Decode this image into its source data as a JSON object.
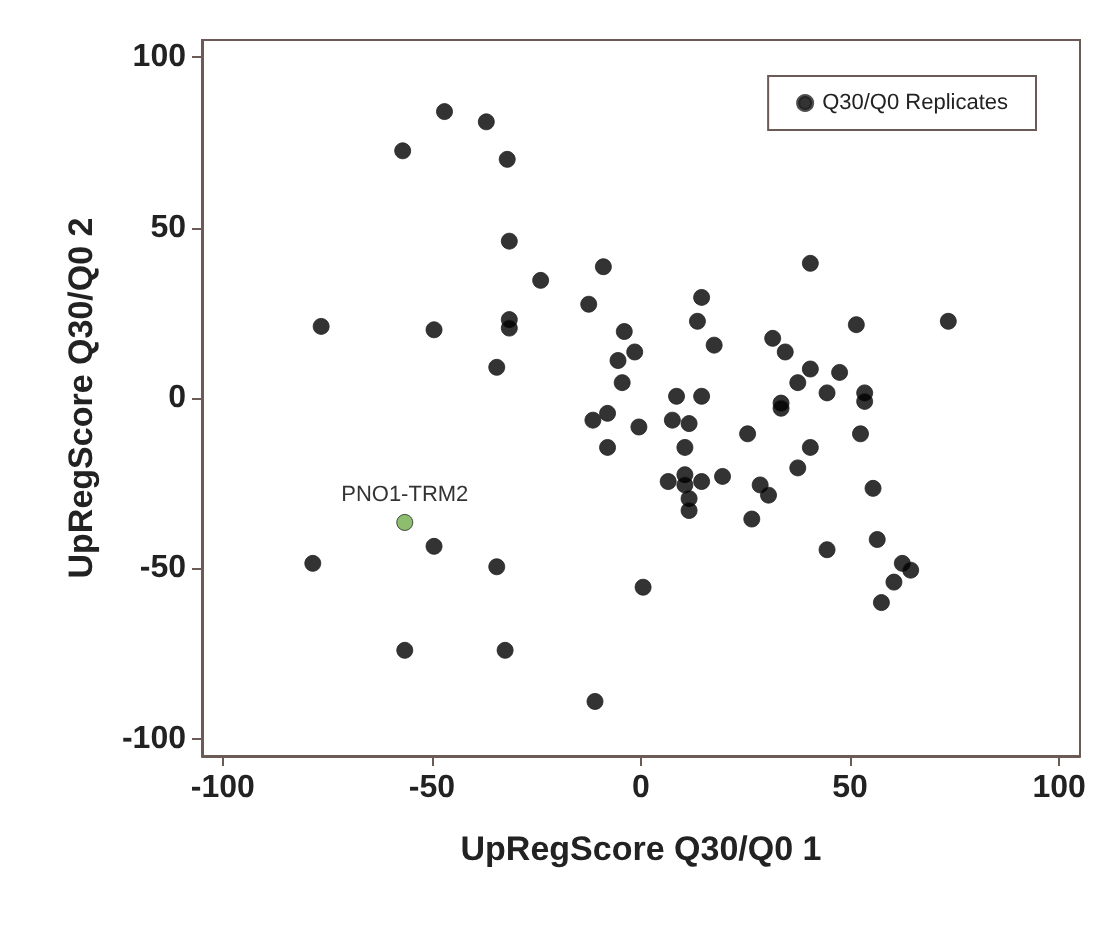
{
  "chart_data": {
    "type": "scatter",
    "xlabel": "UpRegScore Q30/Q0 1",
    "ylabel": "UpRegScore Q30/Q0 2",
    "xlim": [
      -105,
      105
    ],
    "ylim": [
      -105,
      105
    ],
    "xticks": [
      -100,
      -50,
      0,
      50,
      100
    ],
    "yticks": [
      -100,
      -50,
      0,
      50,
      100
    ],
    "grid": false,
    "legend": "top right",
    "marker": "circle",
    "series": [
      {
        "name": "Q30/Q0 Replicates",
        "color": "#000000",
        "x": [
          -47,
          -37,
          -57,
          -32,
          -31.5,
          -24,
          -9,
          -12.5,
          -76.5,
          -49.5,
          -31.5,
          -31.5,
          -4,
          -1.5,
          -5.5,
          -34.5,
          40.5,
          14.5,
          13.5,
          17.5,
          51.5,
          73.5,
          31.5,
          34.5,
          40.5,
          47.5,
          -4.5,
          37.5,
          44.5,
          53.5,
          53.5,
          8.5,
          14.5,
          33.5,
          33.5,
          -8,
          7.5,
          11.5,
          -0.5,
          25.5,
          52.5,
          -8,
          10.5,
          40.5,
          37.5,
          6.5,
          10.5,
          10.5,
          14.5,
          19.5,
          11.5,
          11.5,
          28.5,
          30.5,
          26.5,
          55.5,
          44.5,
          56.5,
          62.5,
          64.5,
          60.5,
          0.5,
          -11.5,
          -49.5,
          -78.5,
          -34.5,
          -56.5,
          -32.5,
          57.5,
          -11
        ],
        "values": [
          84,
          81,
          72.5,
          70,
          46,
          34.5,
          38.5,
          27.5,
          21,
          20,
          23,
          20.5,
          19.5,
          13.5,
          11,
          9,
          39.5,
          29.5,
          22.5,
          15.5,
          21.5,
          22.5,
          17.5,
          13.5,
          8.5,
          7.5,
          4.5,
          4.5,
          1.5,
          1.5,
          -1,
          0.5,
          0.5,
          -1.5,
          -3,
          -4.5,
          -6.5,
          -7.5,
          -8.5,
          -10.5,
          -10.5,
          -14.5,
          -14.5,
          -14.5,
          -20.5,
          -24.5,
          -22.5,
          -25.5,
          -24.5,
          -23,
          -29.5,
          -33,
          -25.5,
          -28.5,
          -35.5,
          -26.5,
          -44.5,
          -41.5,
          -48.5,
          -50.5,
          -54,
          -55.5,
          -6.5,
          -43.5,
          -48.5,
          -49.5,
          -74,
          -74,
          -60,
          -89
        ]
      },
      {
        "color": "#6fae4a",
        "x": [
          -56.5
        ],
        "values": [
          -36.5
        ]
      }
    ],
    "annotations": [
      {
        "text": "PNO1-TRM2",
        "x": -56.5,
        "y": -36.5
      }
    ]
  }
}
